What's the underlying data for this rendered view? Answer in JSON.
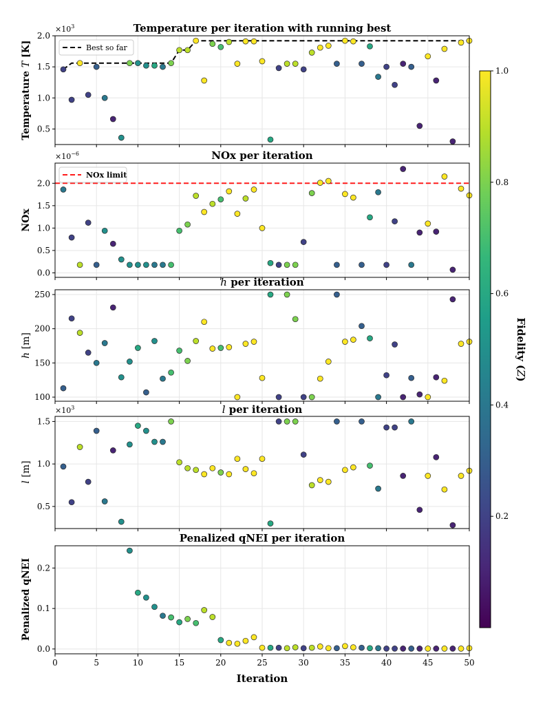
{
  "chart_data": [
    {
      "type": "scatter",
      "title": "Temperature per iteration with running best",
      "ylabel": "Temperature T [K]",
      "ylabel_pre": "Temperature ",
      "ylabel_var": "T",
      "ylabel_post": " [K]",
      "scale_label": "×10³",
      "scale_label_base": "×10",
      "scale_label_exp": "3",
      "xlim": [
        0,
        50
      ],
      "ylim": [
        0.25,
        2.0
      ],
      "yticks": [
        0.5,
        1.0,
        1.5,
        2.0
      ],
      "ytick_labels": [
        "0.5",
        "1.0",
        "1.5",
        "2.0"
      ],
      "legend": {
        "entries": [
          "Best so far"
        ],
        "placement": "upper left"
      },
      "best_so_far": {
        "x": [
          1,
          2,
          3,
          4,
          5,
          6,
          7,
          8,
          9,
          10,
          11,
          12,
          13,
          14,
          15,
          16,
          17,
          18,
          19,
          20,
          21,
          22,
          23,
          24,
          25,
          26,
          27,
          28,
          29,
          30,
          31,
          32,
          33,
          34,
          35,
          36,
          37,
          38,
          39,
          40,
          41,
          42,
          43,
          44,
          45,
          46,
          47,
          48,
          49,
          50
        ],
        "y": [
          1.46,
          1.56,
          1.56,
          1.56,
          1.56,
          1.56,
          1.56,
          1.56,
          1.56,
          1.56,
          1.56,
          1.56,
          1.56,
          1.56,
          1.77,
          1.77,
          1.92,
          1.92,
          1.92,
          1.92,
          1.92,
          1.92,
          1.92,
          1.92,
          1.92,
          1.92,
          1.92,
          1.92,
          1.92,
          1.92,
          1.92,
          1.92,
          1.92,
          1.92,
          1.92,
          1.92,
          1.92,
          1.92,
          1.92,
          1.92,
          1.92,
          1.92,
          1.92,
          1.92,
          1.92,
          1.92,
          1.92,
          1.92,
          1.92,
          1.92
        ]
      },
      "x": [
        1,
        2,
        3,
        4,
        5,
        6,
        7,
        8,
        9,
        10,
        11,
        12,
        13,
        14,
        15,
        16,
        17,
        18,
        19,
        20,
        21,
        22,
        23,
        24,
        25,
        26,
        27,
        28,
        29,
        30,
        31,
        32,
        33,
        34,
        35,
        36,
        37,
        38,
        39,
        40,
        41,
        42,
        43,
        44,
        45,
        46,
        47,
        48,
        49,
        50
      ],
      "y": [
        1.46,
        0.97,
        1.56,
        1.05,
        1.5,
        1.0,
        0.66,
        0.36,
        1.56,
        1.56,
        1.52,
        1.52,
        1.5,
        1.56,
        1.77,
        1.77,
        1.92,
        1.28,
        1.87,
        1.82,
        1.9,
        1.55,
        1.91,
        1.91,
        1.59,
        0.33,
        1.48,
        1.55,
        1.55,
        1.46,
        1.73,
        1.81,
        1.84,
        1.55,
        1.92,
        1.91,
        1.55,
        1.83,
        1.34,
        1.5,
        1.21,
        1.55,
        1.5,
        0.55,
        1.67,
        1.28,
        1.79,
        0.3,
        1.89,
        1.92
      ],
      "fidelity": [
        0.2,
        0.2,
        1.0,
        0.2,
        0.3,
        0.4,
        0.1,
        0.5,
        0.8,
        0.5,
        0.5,
        0.6,
        0.4,
        0.8,
        0.9,
        0.9,
        1.0,
        1.0,
        0.8,
        0.7,
        0.9,
        1.0,
        1.0,
        1.0,
        1.0,
        0.6,
        0.2,
        0.9,
        0.9,
        0.2,
        0.9,
        1.0,
        1.0,
        0.3,
        1.0,
        1.0,
        0.3,
        0.6,
        0.4,
        0.2,
        0.2,
        0.1,
        0.3,
        0.1,
        1.0,
        0.1,
        1.0,
        0.1,
        1.0,
        1.0
      ]
    },
    {
      "type": "scatter",
      "title": "NOx per iteration",
      "ylabel": "NOx",
      "scale_label": "×10⁻⁶",
      "scale_label_base": "×10",
      "scale_label_exp": "−6",
      "xlim": [
        0,
        50
      ],
      "ylim": [
        -0.1,
        2.45
      ],
      "yticks": [
        0.0,
        0.5,
        1.0,
        1.5,
        2.0
      ],
      "ytick_labels": [
        "0.0",
        "0.5",
        "1.0",
        "1.5",
        "2.0"
      ],
      "legend": {
        "entries": [
          "NOx limit"
        ],
        "placement": "upper left"
      },
      "nox_limit": 2.0,
      "x": [
        1,
        2,
        3,
        4,
        5,
        6,
        7,
        8,
        9,
        10,
        11,
        12,
        13,
        14,
        15,
        16,
        17,
        18,
        19,
        20,
        21,
        22,
        23,
        24,
        25,
        26,
        27,
        28,
        29,
        30,
        31,
        32,
        33,
        34,
        35,
        36,
        37,
        38,
        39,
        40,
        41,
        42,
        43,
        44,
        45,
        46,
        47,
        48,
        49,
        50
      ],
      "y": [
        1.86,
        0.79,
        0.18,
        1.12,
        0.18,
        0.94,
        0.65,
        0.3,
        0.18,
        0.18,
        0.18,
        0.18,
        0.18,
        0.18,
        0.94,
        1.08,
        1.72,
        1.36,
        1.54,
        1.64,
        1.82,
        1.32,
        1.66,
        1.86,
        1.0,
        0.22,
        0.18,
        0.18,
        0.18,
        0.69,
        1.78,
        2.01,
        2.05,
        0.18,
        1.76,
        1.68,
        0.18,
        1.24,
        1.8,
        0.18,
        1.15,
        2.32,
        0.18,
        0.9,
        1.1,
        0.92,
        2.15,
        0.07,
        1.88,
        1.73
      ],
      "fidelity": [
        0.4,
        0.2,
        0.9,
        0.2,
        0.3,
        0.5,
        0.1,
        0.5,
        0.5,
        0.5,
        0.5,
        0.4,
        0.4,
        0.7,
        0.7,
        0.8,
        0.9,
        1.0,
        0.9,
        0.7,
        1.0,
        1.0,
        0.9,
        1.0,
        1.0,
        0.6,
        0.2,
        0.8,
        0.8,
        0.2,
        0.8,
        1.0,
        1.0,
        0.3,
        1.0,
        1.0,
        0.3,
        0.6,
        0.4,
        0.2,
        0.2,
        0.1,
        0.4,
        0.1,
        1.0,
        0.1,
        1.0,
        0.1,
        1.0,
        1.0
      ]
    },
    {
      "type": "scatter",
      "title": "h per iteration",
      "title_var": "h",
      "title_rest": " per iteration",
      "ylabel": "h [m]",
      "ylabel_var": "h",
      "ylabel_post": " [m]",
      "xlim": [
        0,
        50
      ],
      "ylim": [
        94,
        257
      ],
      "yticks": [
        100,
        150,
        200,
        250
      ],
      "ytick_labels": [
        "100",
        "150",
        "200",
        "250"
      ],
      "x": [
        1,
        2,
        3,
        4,
        5,
        6,
        7,
        8,
        9,
        10,
        11,
        12,
        13,
        14,
        15,
        16,
        17,
        18,
        19,
        20,
        21,
        22,
        23,
        24,
        25,
        26,
        27,
        28,
        29,
        30,
        31,
        32,
        33,
        34,
        35,
        36,
        37,
        38,
        39,
        40,
        41,
        42,
        43,
        44,
        45,
        46,
        47,
        48,
        49,
        50
      ],
      "y": [
        113,
        215,
        194,
        165,
        150,
        179,
        231,
        129,
        152,
        172,
        107,
        182,
        127,
        136,
        168,
        153,
        182,
        210,
        171,
        172,
        173,
        100,
        178,
        181,
        128,
        250,
        100,
        250,
        214,
        100,
        100,
        127,
        152,
        250,
        181,
        184,
        204,
        186,
        100,
        132,
        177,
        100,
        128,
        104,
        100,
        129,
        124,
        243,
        178,
        181
      ],
      "fidelity": [
        0.3,
        0.2,
        0.9,
        0.2,
        0.4,
        0.4,
        0.1,
        0.5,
        0.5,
        0.6,
        0.3,
        0.5,
        0.4,
        0.7,
        0.7,
        0.8,
        0.9,
        1.0,
        1.0,
        0.7,
        1.0,
        1.0,
        1.0,
        1.0,
        1.0,
        0.6,
        0.2,
        0.8,
        0.8,
        0.2,
        0.8,
        1.0,
        1.0,
        0.3,
        1.0,
        1.0,
        0.3,
        0.6,
        0.4,
        0.2,
        0.2,
        0.1,
        0.3,
        0.1,
        1.0,
        0.1,
        1.0,
        0.1,
        1.0,
        1.0
      ]
    },
    {
      "type": "scatter",
      "title": "l per iteration",
      "title_var": "l",
      "title_rest": " per iteration",
      "ylabel": "l [m]",
      "ylabel_var": "l",
      "ylabel_post": " [m]",
      "scale_label": "×10³",
      "scale_label_base": "×10",
      "scale_label_exp": "3",
      "xlim": [
        0,
        50
      ],
      "ylim": [
        0.24,
        1.56
      ],
      "yticks": [
        0.5,
        1.0,
        1.5
      ],
      "ytick_labels": [
        "0.5",
        "1.0",
        "1.5"
      ],
      "x": [
        1,
        2,
        3,
        4,
        5,
        6,
        7,
        8,
        9,
        10,
        11,
        12,
        13,
        14,
        15,
        16,
        17,
        18,
        19,
        20,
        21,
        22,
        23,
        24,
        25,
        26,
        27,
        28,
        29,
        30,
        31,
        32,
        33,
        34,
        35,
        36,
        37,
        38,
        39,
        40,
        41,
        42,
        43,
        44,
        45,
        46,
        47,
        48,
        49,
        50
      ],
      "y": [
        0.97,
        0.55,
        1.2,
        0.79,
        1.39,
        0.56,
        1.16,
        0.32,
        1.23,
        1.45,
        1.39,
        1.26,
        1.26,
        1.5,
        1.02,
        0.95,
        0.93,
        0.88,
        0.95,
        0.9,
        0.88,
        1.06,
        0.94,
        0.89,
        1.06,
        0.3,
        1.5,
        1.5,
        1.5,
        1.11,
        0.75,
        0.81,
        0.79,
        1.5,
        0.93,
        0.96,
        1.5,
        0.98,
        0.71,
        1.43,
        1.43,
        0.86,
        1.5,
        0.46,
        0.86,
        1.08,
        0.7,
        0.28,
        0.86,
        0.92
      ],
      "fidelity": [
        0.3,
        0.2,
        0.9,
        0.2,
        0.3,
        0.4,
        0.1,
        0.5,
        0.5,
        0.6,
        0.5,
        0.5,
        0.4,
        0.8,
        0.9,
        0.9,
        0.9,
        1.0,
        1.0,
        0.8,
        1.0,
        1.0,
        1.0,
        1.0,
        1.0,
        0.6,
        0.2,
        0.8,
        0.8,
        0.2,
        0.9,
        1.0,
        1.0,
        0.3,
        1.0,
        1.0,
        0.3,
        0.7,
        0.4,
        0.2,
        0.2,
        0.1,
        0.4,
        0.1,
        1.0,
        0.1,
        1.0,
        0.1,
        1.0,
        1.0
      ]
    },
    {
      "type": "scatter",
      "title": "Penalized qNEI per iteration",
      "ylabel": "Penalized qNEI",
      "xlabel": "Iteration",
      "xlim": [
        0,
        50
      ],
      "ylim": [
        -0.012,
        0.255
      ],
      "xticks": [
        0,
        5,
        10,
        15,
        20,
        25,
        30,
        35,
        40,
        45,
        50
      ],
      "xtick_labels": [
        "0",
        "5",
        "10",
        "15",
        "20",
        "25",
        "30",
        "35",
        "40",
        "45",
        "50"
      ],
      "yticks": [
        0.0,
        0.1,
        0.2
      ],
      "ytick_labels": [
        "0.0",
        "0.1",
        "0.2"
      ],
      "x": [
        9,
        10,
        11,
        12,
        13,
        14,
        15,
        16,
        17,
        18,
        19,
        20,
        21,
        22,
        23,
        24,
        25,
        26,
        27,
        28,
        29,
        30,
        31,
        32,
        33,
        34,
        35,
        36,
        37,
        38,
        39,
        40,
        41,
        42,
        43,
        44,
        45,
        46,
        47,
        48,
        49,
        50
      ],
      "y": [
        0.243,
        0.139,
        0.127,
        0.104,
        0.082,
        0.078,
        0.066,
        0.074,
        0.064,
        0.096,
        0.079,
        0.022,
        0.015,
        0.013,
        0.02,
        0.029,
        0.003,
        0.003,
        0.003,
        0.002,
        0.004,
        0.002,
        0.003,
        0.006,
        0.002,
        0.002,
        0.007,
        0.004,
        0.003,
        0.002,
        0.002,
        0.001,
        0.001,
        0.001,
        0.001,
        0.001,
        0.001,
        0.001,
        0.001,
        0.001,
        0.001,
        0.002
      ],
      "fidelity": [
        0.5,
        0.6,
        0.5,
        0.5,
        0.4,
        0.7,
        0.6,
        0.8,
        0.7,
        0.9,
        0.9,
        0.6,
        1.0,
        1.0,
        1.0,
        1.0,
        1.0,
        0.6,
        0.2,
        0.9,
        0.9,
        0.2,
        0.9,
        1.0,
        1.0,
        0.3,
        1.0,
        1.0,
        0.3,
        0.6,
        0.4,
        0.2,
        0.2,
        0.1,
        0.3,
        0.1,
        1.0,
        0.1,
        1.0,
        0.1,
        1.0,
        1.0
      ]
    }
  ],
  "colorbar": {
    "label": "Fidelity (Z)",
    "label_pre": "Fidelity (",
    "label_var": "Z",
    "label_post": ")",
    "range": [
      0.0,
      1.0
    ],
    "ticks": [
      0.2,
      0.4,
      0.6,
      0.8,
      1.0
    ],
    "tick_labels": [
      "0.2",
      "0.4",
      "0.6",
      "0.8",
      "1.0"
    ],
    "colormap": "viridis"
  },
  "legend_labels": {
    "best": "Best so far",
    "nox_limit": "NOx limit"
  },
  "colors": {
    "best_line": "#000000",
    "nox_limit_line": "#ff1a1a",
    "grid": "#e6e6e6"
  },
  "viridis": [
    "#440154",
    "#482878",
    "#3e4989",
    "#31688e",
    "#26828e",
    "#1f9e89",
    "#35b779",
    "#6ece58",
    "#b5de2b",
    "#fde725"
  ]
}
